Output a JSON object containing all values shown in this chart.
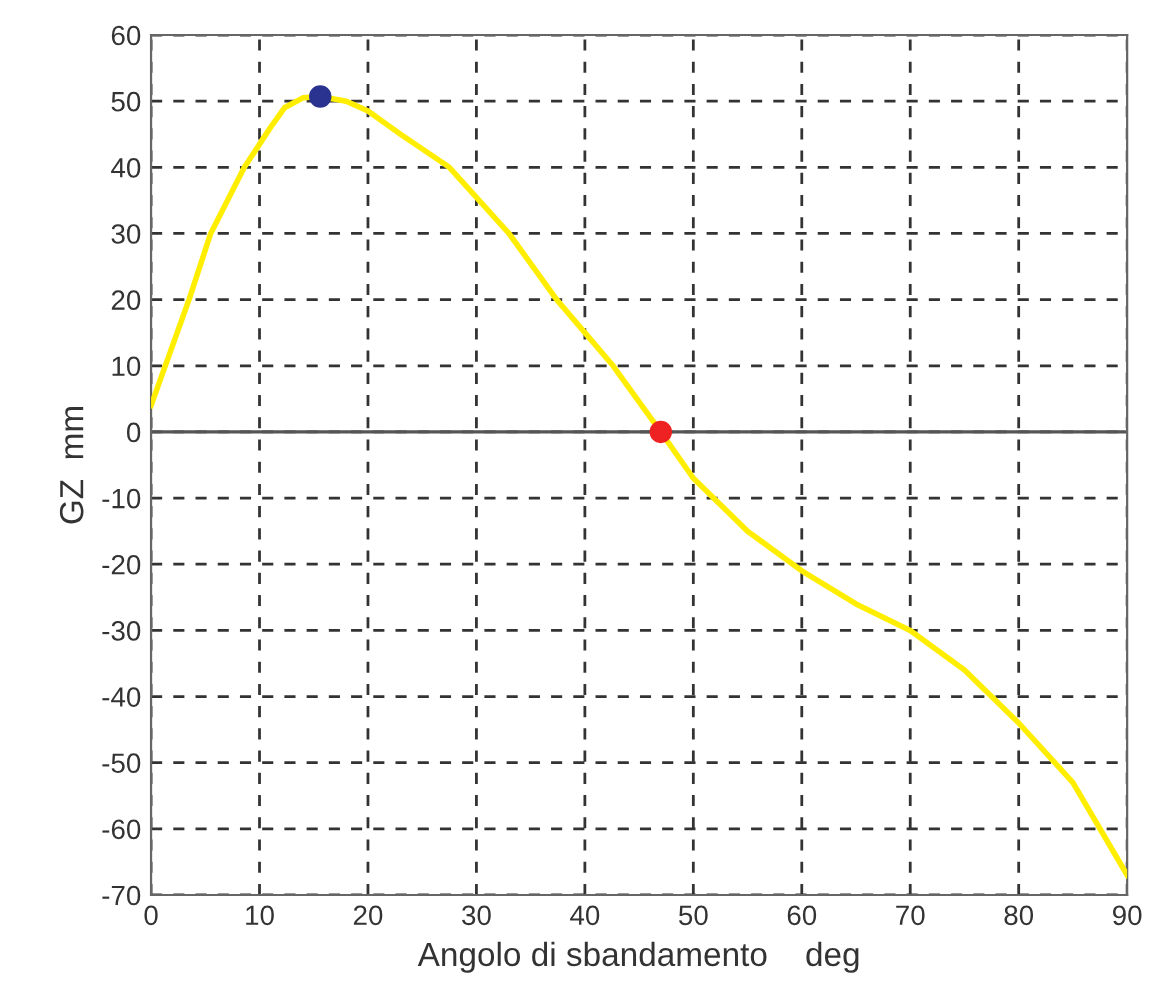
{
  "chart_data": {
    "type": "line",
    "xlabel": "Angolo di sbandamento    deg",
    "ylabel": "GZ  mm",
    "series": [
      {
        "color": "#ffee00",
        "x": [
          0,
          3.5,
          5.5,
          8.6,
          11,
          12.3,
          14,
          15.6,
          18,
          20,
          23,
          27.5,
          33,
          37.4,
          42.6,
          47,
          50,
          55,
          60,
          65,
          70,
          75,
          80,
          85,
          90
        ],
        "values": [
          4,
          20,
          30,
          40,
          46,
          49,
          50.5,
          50.7,
          50,
          48.5,
          45,
          40,
          30,
          20,
          10,
          0,
          -7,
          -15,
          -21,
          -26,
          -30,
          -36,
          -44,
          -53,
          -67
        ]
      },
      {
        "type": "scatter",
        "color": "#2b3390",
        "marker": "circle",
        "x": [
          15.6
        ],
        "values": [
          50.7
        ]
      },
      {
        "type": "scatter",
        "color": "#ee2222",
        "marker": "circle",
        "x": [
          47
        ],
        "values": [
          0
        ]
      }
    ],
    "xlim": [
      0,
      90
    ],
    "ylim": [
      -70,
      60
    ],
    "xticks": [
      0,
      10,
      20,
      30,
      40,
      50,
      60,
      70,
      80,
      90
    ],
    "yticks": [
      -70,
      -60,
      -50,
      -40,
      -30,
      -20,
      -10,
      0,
      10,
      20,
      30,
      40,
      50,
      60
    ],
    "ref_lines": [
      {
        "axis": "y",
        "value": 0,
        "color": "#555555",
        "line_style": "solid"
      }
    ],
    "grid": true,
    "line_style": "solid"
  }
}
